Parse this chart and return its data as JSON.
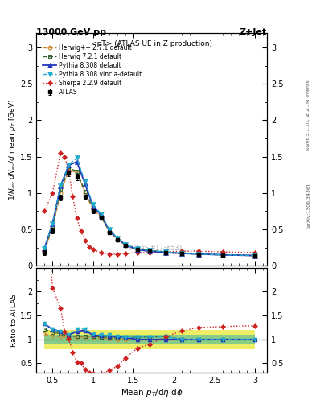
{
  "title_left": "13000 GeV pp",
  "title_right": "Z+Jet",
  "subtitle": "<pT> (ATLAS UE in Z production)",
  "ylabel_main": "1/N_{ev} dN_{ev}/d mean p_{T} [GeV]",
  "ylabel_ratio": "Ratio to ATLAS",
  "xlabel": "Mean p_{T}/dη dφ",
  "watermark": "ATLAS #1736531",
  "right_label_top": "Rivet 3.1.10, ≥ 2.7M events",
  "right_label_bot": "[arXiv:1306.3436]",
  "atlas_x": [
    0.4,
    0.5,
    0.6,
    0.7,
    0.8,
    0.9,
    1.0,
    1.1,
    1.2,
    1.3,
    1.4,
    1.55,
    1.7,
    1.9,
    2.1,
    2.3,
    2.6,
    3.0
  ],
  "atlas_y": [
    0.18,
    0.48,
    0.94,
    1.27,
    1.22,
    0.95,
    0.75,
    0.65,
    0.46,
    0.36,
    0.28,
    0.22,
    0.2,
    0.18,
    0.17,
    0.16,
    0.15,
    0.14
  ],
  "atlas_yerr": [
    0.03,
    0.04,
    0.04,
    0.04,
    0.04,
    0.03,
    0.03,
    0.02,
    0.02,
    0.02,
    0.01,
    0.01,
    0.01,
    0.01,
    0.01,
    0.01,
    0.01,
    0.01
  ],
  "herwig271_x": [
    0.4,
    0.5,
    0.6,
    0.7,
    0.8,
    0.9,
    1.0,
    1.1,
    1.2,
    1.3,
    1.4,
    1.55,
    1.7,
    1.9,
    2.1,
    2.3,
    2.6,
    3.0
  ],
  "herwig271_y": [
    0.2,
    0.52,
    1.0,
    1.32,
    1.28,
    1.0,
    0.78,
    0.67,
    0.47,
    0.36,
    0.28,
    0.22,
    0.2,
    0.18,
    0.17,
    0.16,
    0.15,
    0.14
  ],
  "herwig721_x": [
    0.4,
    0.5,
    0.6,
    0.7,
    0.8,
    0.9,
    1.0,
    1.1,
    1.2,
    1.3,
    1.4,
    1.55,
    1.7,
    1.9,
    2.1,
    2.3,
    2.6,
    3.0
  ],
  "herwig721_y": [
    0.22,
    0.55,
    1.05,
    1.34,
    1.3,
    1.02,
    0.8,
    0.68,
    0.48,
    0.37,
    0.29,
    0.23,
    0.21,
    0.19,
    0.17,
    0.16,
    0.15,
    0.14
  ],
  "pythia308_x": [
    0.4,
    0.5,
    0.6,
    0.7,
    0.8,
    0.9,
    1.0,
    1.1,
    1.2,
    1.3,
    1.4,
    1.55,
    1.7,
    1.9,
    2.1,
    2.3,
    2.6,
    3.0
  ],
  "pythia308_y": [
    0.24,
    0.58,
    1.1,
    1.38,
    1.43,
    1.13,
    0.82,
    0.7,
    0.49,
    0.38,
    0.29,
    0.22,
    0.2,
    0.18,
    0.17,
    0.16,
    0.15,
    0.14
  ],
  "pythia308v_x": [
    0.4,
    0.5,
    0.6,
    0.7,
    0.8,
    0.9,
    1.0,
    1.1,
    1.2,
    1.3,
    1.4,
    1.55,
    1.7,
    1.9,
    2.1,
    2.3,
    2.6,
    3.0
  ],
  "pythia308v_y": [
    0.24,
    0.58,
    1.1,
    1.39,
    1.48,
    1.16,
    0.84,
    0.71,
    0.5,
    0.38,
    0.29,
    0.23,
    0.21,
    0.19,
    0.17,
    0.16,
    0.15,
    0.14
  ],
  "sherpa229_x": [
    0.4,
    0.5,
    0.6,
    0.65,
    0.7,
    0.75,
    0.8,
    0.85,
    0.9,
    0.95,
    1.0,
    1.1,
    1.2,
    1.3,
    1.4,
    1.55,
    1.7,
    1.9,
    2.1,
    2.3,
    2.6,
    3.0
  ],
  "sherpa229_y": [
    0.75,
    1.0,
    1.55,
    1.5,
    1.3,
    0.95,
    0.65,
    0.48,
    0.35,
    0.26,
    0.22,
    0.18,
    0.16,
    0.16,
    0.17,
    0.18,
    0.18,
    0.19,
    0.2,
    0.2,
    0.19,
    0.18
  ],
  "ratio_x": [
    0.4,
    0.5,
    0.6,
    0.7,
    0.8,
    0.9,
    1.0,
    1.1,
    1.2,
    1.3,
    1.4,
    1.55,
    1.7,
    1.9,
    2.1,
    2.3,
    2.6,
    3.0
  ],
  "ratio_herwig271": [
    1.11,
    1.08,
    1.06,
    1.04,
    1.05,
    1.05,
    1.04,
    1.03,
    1.02,
    1.0,
    1.0,
    1.0,
    1.0,
    1.0,
    1.0,
    1.0,
    1.0,
    1.0
  ],
  "ratio_herwig721": [
    1.22,
    1.15,
    1.12,
    1.06,
    1.07,
    1.07,
    1.07,
    1.05,
    1.04,
    1.03,
    1.04,
    1.05,
    1.05,
    1.06,
    1.0,
    1.0,
    1.0,
    1.0
  ],
  "ratio_pythia308": [
    1.33,
    1.21,
    1.17,
    1.09,
    1.17,
    1.19,
    1.09,
    1.08,
    1.07,
    1.06,
    1.04,
    1.0,
    1.0,
    1.0,
    1.0,
    1.0,
    1.0,
    1.0
  ],
  "ratio_pythia308v": [
    1.33,
    1.21,
    1.17,
    1.1,
    1.21,
    1.22,
    1.12,
    1.09,
    1.09,
    1.06,
    1.04,
    1.05,
    1.05,
    1.06,
    1.0,
    1.0,
    1.0,
    1.0
  ],
  "ratio_sherpa229_x": [
    0.4,
    0.5,
    0.6,
    0.65,
    0.7,
    0.75,
    0.8,
    0.85,
    0.9,
    0.95,
    1.0,
    1.1,
    1.2,
    1.3,
    1.4,
    1.55,
    1.7,
    1.9,
    2.1,
    2.3,
    2.6,
    3.0
  ],
  "ratio_sherpa229": [
    4.17,
    2.08,
    1.65,
    1.17,
    1.02,
    0.73,
    0.53,
    0.51,
    0.37,
    0.31,
    0.29,
    0.28,
    0.35,
    0.44,
    0.61,
    0.82,
    0.9,
    1.06,
    1.18,
    1.25,
    1.27,
    1.29
  ],
  "band_x": [
    0.4,
    0.5,
    0.6,
    0.7,
    0.8,
    0.9,
    1.0,
    1.1,
    1.2,
    1.3,
    1.4,
    1.55,
    1.7,
    1.9,
    2.1,
    2.3,
    2.6,
    3.0
  ],
  "band_ylo": [
    0.8,
    0.8,
    0.8,
    0.8,
    0.8,
    0.8,
    0.8,
    0.8,
    0.8,
    0.8,
    0.8,
    0.8,
    0.8,
    0.8,
    0.8,
    0.8,
    0.8,
    0.8
  ],
  "band_yhi": [
    1.2,
    1.2,
    1.2,
    1.2,
    1.2,
    1.2,
    1.2,
    1.2,
    1.2,
    1.2,
    1.2,
    1.2,
    1.2,
    1.2,
    1.2,
    1.2,
    1.2,
    1.2
  ],
  "band2_ylo": [
    0.9,
    0.9,
    0.9,
    0.9,
    0.9,
    0.9,
    0.9,
    0.9,
    0.9,
    0.9,
    0.9,
    0.9,
    0.9,
    0.9,
    0.9,
    0.9,
    0.9,
    0.9
  ],
  "band2_yhi": [
    1.1,
    1.1,
    1.1,
    1.1,
    1.1,
    1.1,
    1.1,
    1.1,
    1.1,
    1.1,
    1.1,
    1.1,
    1.1,
    1.1,
    1.1,
    1.1,
    1.1,
    1.1
  ],
  "xlim": [
    0.3,
    3.15
  ],
  "ylim_main": [
    0.0,
    3.2
  ],
  "ylim_ratio": [
    0.3,
    2.5
  ],
  "color_atlas": "#000000",
  "color_herwig271": "#cc8833",
  "color_herwig721": "#336633",
  "color_pythia308": "#2233bb",
  "color_pythia308v": "#22aacc",
  "color_sherpa229": "#cc2222",
  "color_band_yellow": "#eeee66",
  "color_band_green": "#88cc88"
}
